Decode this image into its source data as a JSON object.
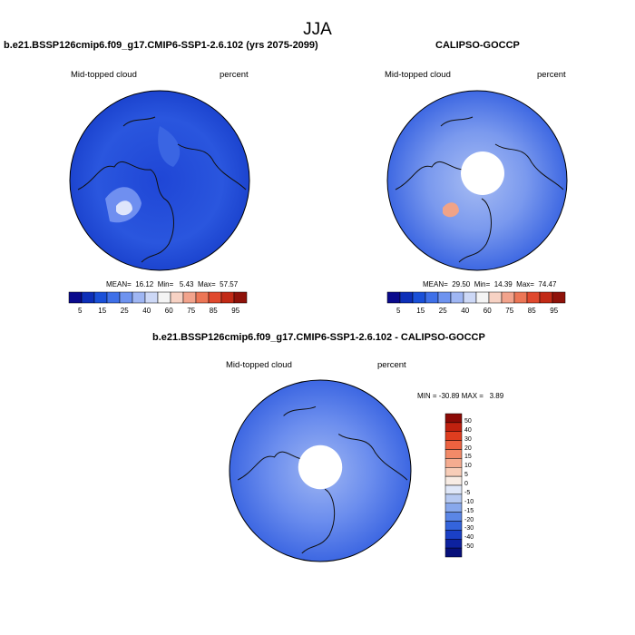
{
  "figure": {
    "title": "JJA"
  },
  "panels": [
    {
      "name": "model",
      "header": "b.e21.BSSP126cmip6.f09_g17.CMIP6-SSP1-2.6.102 (yrs 2075-2099)",
      "left_label": "Mid-topped cloud",
      "right_label": "percent",
      "stats": "MEAN=  16.12  Min=   5.43  Max=  57.57",
      "mean": 16.12,
      "min": 5.43,
      "max": 57.57
    },
    {
      "name": "obs",
      "header": "CALIPSO-GOCCP",
      "left_label": "Mid-topped cloud",
      "right_label": "percent",
      "stats": "MEAN=  29.50  Min=  14.39  Max=  74.47",
      "mean": 29.5,
      "min": 14.39,
      "max": 74.47
    },
    {
      "name": "diff",
      "header": "b.e21.BSSP126cmip6.f09_g17.CMIP6-SSP1-2.6.102 - CALIPSO-GOCCP",
      "left_label": "Mid-topped cloud",
      "right_label": "percent",
      "stats": "MIN = -30.89 MAX =   3.89",
      "min": -30.89,
      "max": 3.89
    }
  ],
  "colorbar_main": {
    "ticks": [
      "5",
      "15",
      "25",
      "40",
      "60",
      "75",
      "85",
      "95"
    ],
    "colors": [
      "#0a0a8c",
      "#0d2fb8",
      "#1a50d8",
      "#3f70e8",
      "#6e93ef",
      "#9fb6f3",
      "#cdd8f6",
      "#f4f4f4",
      "#f7d2c4",
      "#f2a38c",
      "#ec7656",
      "#e0492e",
      "#c22a16",
      "#8f120a"
    ]
  },
  "colorbar_diff": {
    "ticks": [
      "50",
      "40",
      "30",
      "20",
      "15",
      "10",
      "5",
      "0",
      "-5",
      "-10",
      "-15",
      "-20",
      "-30",
      "-40",
      "-50"
    ],
    "colors": [
      "#8c0a06",
      "#c0210f",
      "#df3d1f",
      "#ec6240",
      "#f28a68",
      "#f5ac90",
      "#f8cdb8",
      "#f8ece4",
      "#dfe7f8",
      "#b6c9f1",
      "#88a8ec",
      "#5b86e6",
      "#3464dc",
      "#1a40c6",
      "#0d22a0",
      "#07107a"
    ]
  },
  "colors": {
    "ocean_blue": "#1d4fd8",
    "coast": "#111111"
  }
}
